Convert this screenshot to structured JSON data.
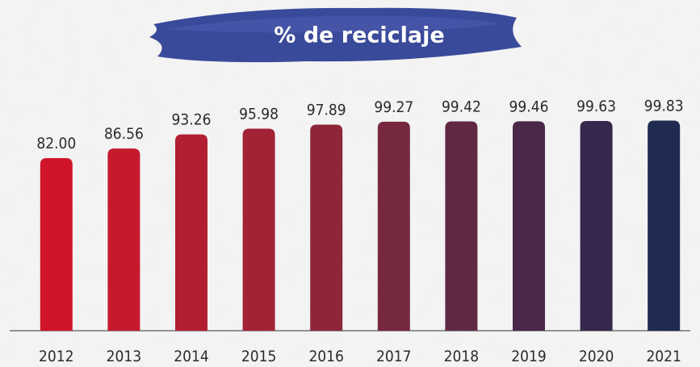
{
  "chart_data": {
    "type": "bar",
    "title": "% de reciclaje",
    "categories": [
      "2012",
      "2013",
      "2014",
      "2015",
      "2016",
      "2017",
      "2018",
      "2019",
      "2020",
      "2021"
    ],
    "values": [
      82,
      86.56,
      93.26,
      95.98,
      97.89,
      99.27,
      99.42,
      99.46,
      99.63,
      99.83
    ],
    "value_labels": [
      "82.00",
      "86.56",
      "93.26",
      "95.98",
      "97.89",
      "99.27",
      "99.42",
      "99.46",
      "99.63",
      "99.83"
    ],
    "colors": [
      "#d0152b",
      "#c51a2e",
      "#b31f32",
      "#a32336",
      "#8e2639",
      "#76283e",
      "#5f2843",
      "#4a2849",
      "#35284c",
      "#1f2b50"
    ],
    "ylim": [
      0,
      100
    ]
  }
}
